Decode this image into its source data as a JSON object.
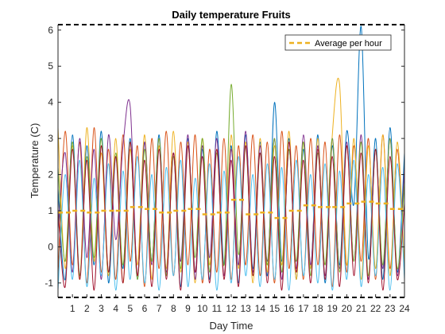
{
  "chart_data": {
    "type": "line",
    "title": "Daily temperature Fruits",
    "xlabel": "Day Time",
    "ylabel": "Temperature (C)",
    "xlim": [
      0,
      24
    ],
    "ylim": [
      -1.4,
      6.15
    ],
    "xticks": [
      1,
      2,
      3,
      4,
      5,
      6,
      7,
      8,
      9,
      10,
      11,
      12,
      13,
      14,
      15,
      16,
      17,
      18,
      19,
      20,
      21,
      22,
      23,
      24
    ],
    "yticks": [
      -1,
      0,
      1,
      2,
      3,
      4,
      5,
      6
    ],
    "grid": false,
    "legend_position": "top-right",
    "series_colors": [
      "#0072BD",
      "#D95319",
      "#EDB120",
      "#7E2F8E",
      "#77AC30",
      "#4DBEEE",
      "#A2142F"
    ],
    "series": [
      {
        "x": [
          0,
          0.5,
          1,
          1.5,
          2,
          2.5,
          3,
          3.5,
          4,
          4.5,
          5,
          5.5,
          6,
          6.5,
          7,
          7.5,
          8,
          8.5,
          9,
          9.5,
          10,
          10.5,
          11,
          11.5,
          12,
          12.5,
          13,
          13.5,
          14,
          14.5,
          15,
          15.5,
          16,
          16.5,
          17,
          17.5,
          18,
          18.5,
          19,
          19.5,
          20,
          20.5,
          21,
          21.5,
          22,
          22.5,
          23,
          23.5,
          24
        ],
        "values": [
          1.6,
          -0.9,
          3.1,
          -0.8,
          2.8,
          -0.5,
          3.2,
          -1.0,
          2.5,
          -0.6,
          3.0,
          -0.9,
          2.9,
          -0.4,
          3.1,
          -0.8,
          2.6,
          -1.1,
          3.0,
          -0.7,
          2.7,
          -0.9,
          3.2,
          -0.5,
          2.8,
          -1.0,
          3.1,
          -0.6,
          2.9,
          -0.8,
          4.0,
          -0.4,
          3.0,
          -0.9,
          2.7,
          -0.6,
          3.1,
          -1.0,
          2.8,
          -0.5,
          3.2,
          1.2,
          6.1,
          -0.3,
          3.0,
          -0.9,
          3.3,
          -0.7,
          2.6
        ]
      },
      {
        "x": [
          0,
          0.5,
          1,
          1.5,
          2,
          2.5,
          3,
          3.5,
          4,
          4.5,
          5,
          5.5,
          6,
          6.5,
          7,
          7.5,
          8,
          8.5,
          9,
          9.5,
          10,
          10.5,
          11,
          11.5,
          12,
          12.5,
          13,
          13.5,
          14,
          14.5,
          15,
          15.5,
          16,
          16.5,
          17,
          17.5,
          18,
          18.5,
          19,
          19.5,
          20,
          20.5,
          21,
          21.5,
          22,
          22.5,
          23,
          23.5,
          24
        ],
        "values": [
          -0.8,
          3.2,
          -0.5,
          2.9,
          -1.0,
          3.3,
          -0.7,
          2.7,
          -0.9,
          3.1,
          -0.4,
          2.8,
          -1.1,
          3.0,
          -0.6,
          3.2,
          -0.8,
          2.9,
          -0.5,
          3.1,
          -1.0,
          2.7,
          -0.7,
          3.0,
          -0.9,
          2.8,
          -0.5,
          3.1,
          -0.8,
          2.9,
          -1.0,
          3.2,
          -0.6,
          2.8,
          -0.9,
          3.0,
          -0.5,
          2.9,
          -1.1,
          3.1,
          -0.7,
          2.8,
          -0.4,
          3.0,
          -0.9,
          3.1,
          -0.6,
          2.7,
          -0.8
        ]
      },
      {
        "x": [
          0,
          0.5,
          1,
          1.5,
          2,
          2.5,
          3,
          3.5,
          4,
          4.5,
          5,
          5.5,
          6,
          6.5,
          7,
          7.5,
          8,
          8.5,
          9,
          9.5,
          10,
          10.5,
          11,
          11.5,
          12,
          12.5,
          13,
          13.5,
          14,
          14.5,
          15,
          15.5,
          16,
          16.5,
          17,
          17.5,
          18,
          18.5,
          19,
          19.5,
          20,
          20.5,
          21,
          21.5,
          22,
          22.5,
          23,
          23.5,
          24
        ],
        "values": [
          3.3,
          -0.6,
          2.8,
          -0.9,
          3.3,
          -0.4,
          2.6,
          -0.8,
          3.0,
          -1.0,
          2.7,
          -0.5,
          3.1,
          -0.9,
          2.8,
          -0.6,
          3.2,
          -0.7,
          2.9,
          -1.0,
          3.0,
          -0.5,
          2.7,
          -0.8,
          3.1,
          -0.6,
          2.9,
          -1.0,
          3.0,
          -0.7,
          2.8,
          -0.5,
          3.2,
          -0.9,
          2.9,
          -0.6,
          3.0,
          -0.8,
          3.1,
          4.5,
          -0.5,
          3.0,
          -0.9,
          2.8,
          -0.6,
          3.1,
          -0.8,
          2.9,
          -0.6
        ]
      },
      {
        "x": [
          0,
          0.5,
          1,
          1.5,
          2,
          2.5,
          3,
          3.5,
          4,
          4.5,
          5,
          5.5,
          6,
          6.5,
          7,
          7.5,
          8,
          8.5,
          9,
          9.5,
          10,
          10.5,
          11,
          11.5,
          12,
          12.5,
          13,
          13.5,
          14,
          14.5,
          15,
          15.5,
          16,
          16.5,
          17,
          17.5,
          18,
          18.5,
          19,
          19.5,
          20,
          20.5,
          21,
          21.5,
          22,
          22.5,
          23,
          23.5,
          24
        ],
        "values": [
          0.5,
          2.6,
          -0.7,
          3.0,
          -0.3,
          2.7,
          -0.9,
          3.1,
          0.2,
          2.8,
          3.9,
          -0.8,
          2.9,
          -0.5,
          3.0,
          -0.7,
          2.6,
          -0.4,
          3.1,
          -0.9,
          2.8,
          -0.3,
          3.0,
          -0.8,
          2.7,
          -0.5,
          3.2,
          -0.7,
          2.8,
          -0.4,
          3.0,
          -0.9,
          2.7,
          -0.6,
          3.1,
          -0.5,
          2.8,
          -0.8,
          3.0,
          -0.6,
          2.9,
          -0.4,
          3.1,
          -0.9,
          2.7,
          -0.6,
          3.0,
          -0.8,
          2.2
        ]
      },
      {
        "x": [
          0,
          0.5,
          1,
          1.5,
          2,
          2.5,
          3,
          3.5,
          4,
          4.5,
          5,
          5.5,
          6,
          6.5,
          7,
          7.5,
          8,
          8.5,
          9,
          9.5,
          10,
          10.5,
          11,
          11.5,
          12,
          12.5,
          13,
          13.5,
          14,
          14.5,
          15,
          15.5,
          16,
          16.5,
          17,
          17.5,
          18,
          18.5,
          19,
          19.5,
          20,
          20.5,
          21,
          21.5,
          22,
          22.5,
          23,
          23.5,
          24
        ],
        "values": [
          2.2,
          -0.4,
          2.9,
          -0.8,
          2.5,
          -0.3,
          3.0,
          -0.7,
          2.6,
          -0.5,
          2.9,
          -0.9,
          2.7,
          -0.4,
          3.0,
          -0.8,
          2.5,
          -0.6,
          2.8,
          -0.3,
          3.0,
          -0.7,
          2.6,
          -0.5,
          4.5,
          -0.2,
          2.8,
          -0.8,
          2.6,
          -0.5,
          3.0,
          -0.7,
          2.7,
          -0.4,
          2.9,
          -0.8,
          2.6,
          -0.5,
          3.0,
          -0.7,
          2.8,
          -0.4,
          2.9,
          -0.8,
          2.7,
          -0.5,
          3.0,
          -0.6,
          1.8
        ]
      },
      {
        "x": [
          0,
          0.5,
          1,
          1.5,
          2,
          2.5,
          3,
          3.5,
          4,
          4.5,
          5,
          5.5,
          6,
          6.5,
          7,
          7.5,
          8,
          8.5,
          9,
          9.5,
          10,
          10.5,
          11,
          11.5,
          12,
          12.5,
          13,
          13.5,
          14,
          14.5,
          15,
          15.5,
          16,
          16.5,
          17,
          17.5,
          18,
          18.5,
          19,
          19.5,
          20,
          20.5,
          21,
          21.5,
          22,
          22.5,
          23,
          23.5,
          24
        ],
        "values": [
          -1.2,
          2.0,
          -0.9,
          2.4,
          -1.1,
          1.9,
          -0.8,
          2.3,
          -1.2,
          2.1,
          -0.9,
          2.5,
          -1.0,
          2.0,
          -1.2,
          2.2,
          -0.8,
          2.4,
          -1.1,
          1.9,
          -0.9,
          2.3,
          -1.2,
          2.1,
          -1.0,
          2.5,
          -0.8,
          2.0,
          -1.1,
          2.3,
          -0.9,
          2.2,
          -1.2,
          2.4,
          -0.8,
          2.0,
          -1.0,
          2.3,
          -1.2,
          2.1,
          -0.9,
          2.4,
          -1.1,
          2.0,
          -0.8,
          2.2,
          -1.2,
          2.3,
          -0.9
        ]
      },
      {
        "x": [
          0,
          0.5,
          1,
          1.5,
          2,
          2.5,
          3,
          3.5,
          4,
          4.5,
          5,
          5.5,
          6,
          6.5,
          7,
          7.5,
          8,
          8.5,
          9,
          9.5,
          10,
          10.5,
          11,
          11.5,
          12,
          12.5,
          13,
          13.5,
          14,
          14.5,
          15,
          15.5,
          16,
          16.5,
          17,
          17.5,
          18,
          18.5,
          19,
          19.5,
          20,
          20.5,
          21,
          21.5,
          22,
          22.5,
          23,
          23.5,
          24
        ],
        "values": [
          1.0,
          -1.1,
          2.7,
          -0.9,
          2.4,
          -1.2,
          2.8,
          -0.7,
          2.5,
          -1.0,
          2.9,
          -0.8,
          2.4,
          -1.1,
          2.7,
          -0.9,
          2.6,
          -1.2,
          2.8,
          -0.7,
          2.5,
          -1.0,
          2.7,
          -0.9,
          2.4,
          -1.1,
          2.8,
          -0.8,
          2.6,
          -1.0,
          2.5,
          -1.2,
          2.9,
          -0.7,
          2.4,
          -1.0,
          2.7,
          -0.9,
          2.5,
          -1.1,
          2.8,
          -0.8,
          2.6,
          -1.0,
          2.7,
          -1.2,
          2.5,
          -0.9,
          1.2
        ]
      }
    ],
    "average": {
      "name": "Average per hour",
      "color": "#EDB120",
      "x": [
        0,
        1,
        2,
        3,
        4,
        5,
        6,
        7,
        8,
        9,
        10,
        11,
        12,
        13,
        14,
        15,
        16,
        17,
        18,
        19,
        20,
        21,
        22,
        23,
        24
      ],
      "values": [
        0.95,
        1.0,
        0.95,
        1.0,
        1.0,
        1.1,
        1.05,
        0.95,
        1.0,
        1.05,
        0.9,
        0.95,
        1.3,
        0.9,
        0.95,
        0.8,
        1.0,
        1.15,
        1.1,
        1.1,
        1.2,
        1.25,
        1.2,
        1.05,
        1.05
      ]
    }
  }
}
